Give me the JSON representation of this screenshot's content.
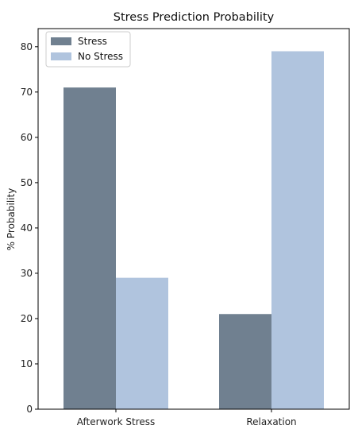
{
  "chart_data": {
    "type": "bar",
    "title": "Stress Prediction Probability",
    "xlabel": "",
    "ylabel": "% Probability",
    "categories": [
      "Afterwork Stress",
      "Relaxation"
    ],
    "series": [
      {
        "name": "Stress",
        "values": [
          71,
          21
        ],
        "color": "#708090"
      },
      {
        "name": "No Stress",
        "values": [
          29,
          79
        ],
        "color": "#b0c4de"
      }
    ],
    "ylim": [
      0,
      84
    ],
    "yticks": [
      0,
      10,
      20,
      30,
      40,
      50,
      60,
      70,
      80
    ],
    "grid": false,
    "legend_position": "top-left"
  }
}
